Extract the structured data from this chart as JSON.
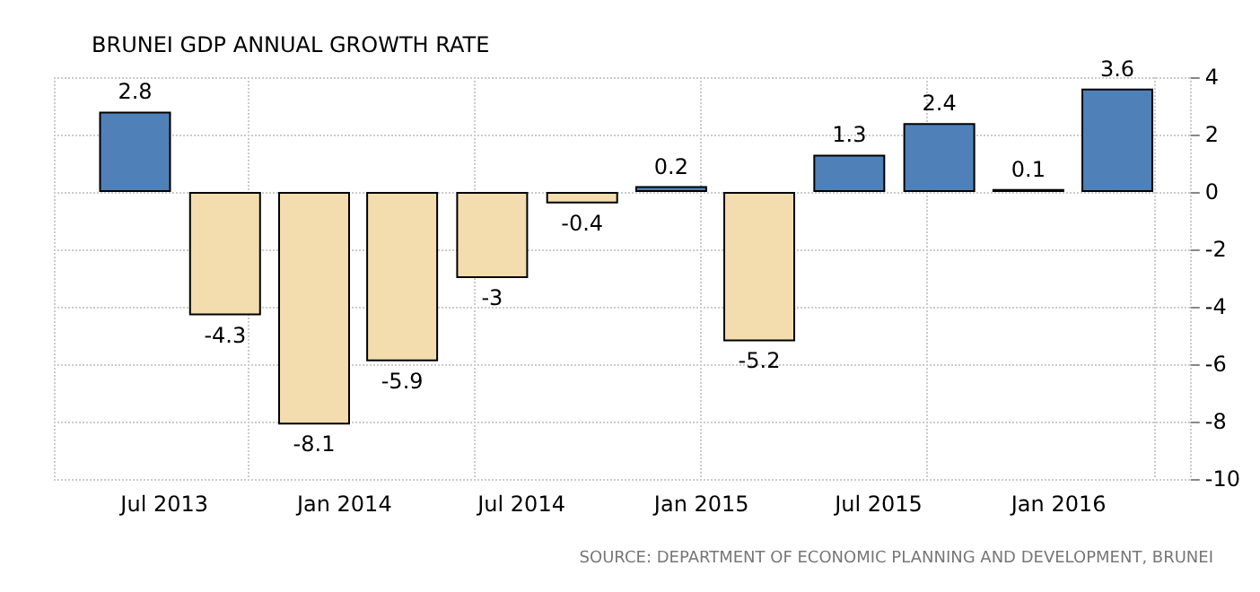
{
  "chart_data": {
    "type": "bar",
    "title": "BRUNEI GDP ANNUAL GROWTH RATE",
    "x": [
      "2013-06",
      "2013-09",
      "2013-12",
      "2014-03",
      "2014-06",
      "2014-09",
      "2014-12",
      "2015-03",
      "2015-06",
      "2015-09",
      "2015-12",
      "2016-03"
    ],
    "values": [
      2.8,
      -4.3,
      -8.1,
      -5.9,
      -3,
      -0.4,
      0.2,
      -5.2,
      1.3,
      2.4,
      0.1,
      3.6
    ],
    "colors": [
      "#4f81b8",
      "#f3dcae",
      "#f3dcae",
      "#f3dcae",
      "#f3dcae",
      "#f3dcae",
      "#4f81b8",
      "#f3dcae",
      "#4f81b8",
      "#4f81b8",
      "#4f81b8",
      "#4f81b8"
    ],
    "data_labels": true,
    "xlim": [
      "2013-03-10",
      "2016-05-15"
    ],
    "xticks": [
      {
        "value": "2013-07",
        "label": "Jul 2013"
      },
      {
        "value": "2014-01",
        "label": "Jan 2014"
      },
      {
        "value": "2014-07",
        "label": "Jul 2014"
      },
      {
        "value": "2015-01",
        "label": "Jan 2015"
      },
      {
        "value": "2015-07",
        "label": "Jul 2015"
      },
      {
        "value": "2016-01",
        "label": "Jan 2016"
      }
    ],
    "ylim": [
      -10,
      4
    ],
    "yticks": [
      -10,
      -8,
      -6,
      -4,
      -2,
      0,
      2,
      4
    ],
    "grid": true,
    "annotations": [
      "SOURCE: DEPARTMENT OF ECONOMIC PLANNING AND DEVELOPMENT, BRUNEI"
    ]
  }
}
